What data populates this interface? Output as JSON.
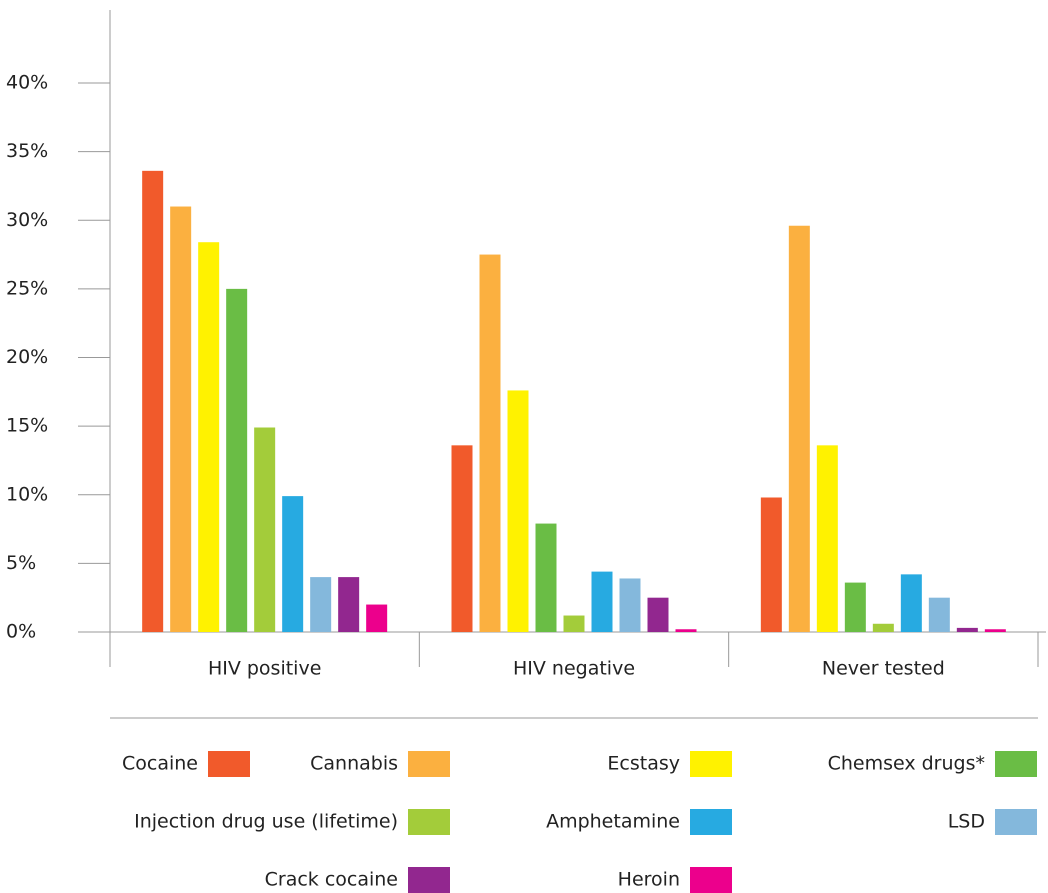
{
  "chart_data": {
    "type": "bar",
    "categories": [
      "HIV positive",
      "HIV negative",
      "Never tested"
    ],
    "series": [
      {
        "name": "Cocaine",
        "color": "#f15a2b",
        "values": [
          33.6,
          13.6,
          9.8
        ]
      },
      {
        "name": "Cannabis",
        "color": "#fbb040",
        "values": [
          31.0,
          27.5,
          29.6
        ]
      },
      {
        "name": "Ecstasy",
        "color": "#fff200",
        "values": [
          28.4,
          17.6,
          13.6
        ]
      },
      {
        "name": "Chemsex drugs*",
        "color": "#6abd45",
        "values": [
          25.0,
          7.9,
          3.6
        ]
      },
      {
        "name": "Injection drug use (lifetime)",
        "color": "#a3cc3a",
        "values": [
          14.9,
          1.2,
          0.6
        ]
      },
      {
        "name": "Amphetamine",
        "color": "#27aae1",
        "values": [
          9.9,
          4.4,
          4.2
        ]
      },
      {
        "name": "LSD",
        "color": "#84b8dc",
        "values": [
          4.0,
          3.9,
          2.5
        ]
      },
      {
        "name": "Crack cocaine",
        "color": "#92278f",
        "values": [
          4.0,
          2.5,
          0.3
        ]
      },
      {
        "name": "Heroin",
        "color": "#ec008c",
        "values": [
          2.0,
          0.2,
          0.2
        ]
      }
    ],
    "ylim": [
      0,
      40
    ],
    "yticks": [
      {
        "value": 0,
        "label": "0%"
      },
      {
        "value": 5,
        "label": "5%"
      },
      {
        "value": 10,
        "label": "10%"
      },
      {
        "value": 15,
        "label": "15%"
      },
      {
        "value": 20,
        "label": "20%"
      },
      {
        "value": 25,
        "label": "25%"
      },
      {
        "value": 30,
        "label": "30%"
      },
      {
        "value": 35,
        "label": "35%"
      },
      {
        "value": 40,
        "label": "40%"
      }
    ]
  }
}
